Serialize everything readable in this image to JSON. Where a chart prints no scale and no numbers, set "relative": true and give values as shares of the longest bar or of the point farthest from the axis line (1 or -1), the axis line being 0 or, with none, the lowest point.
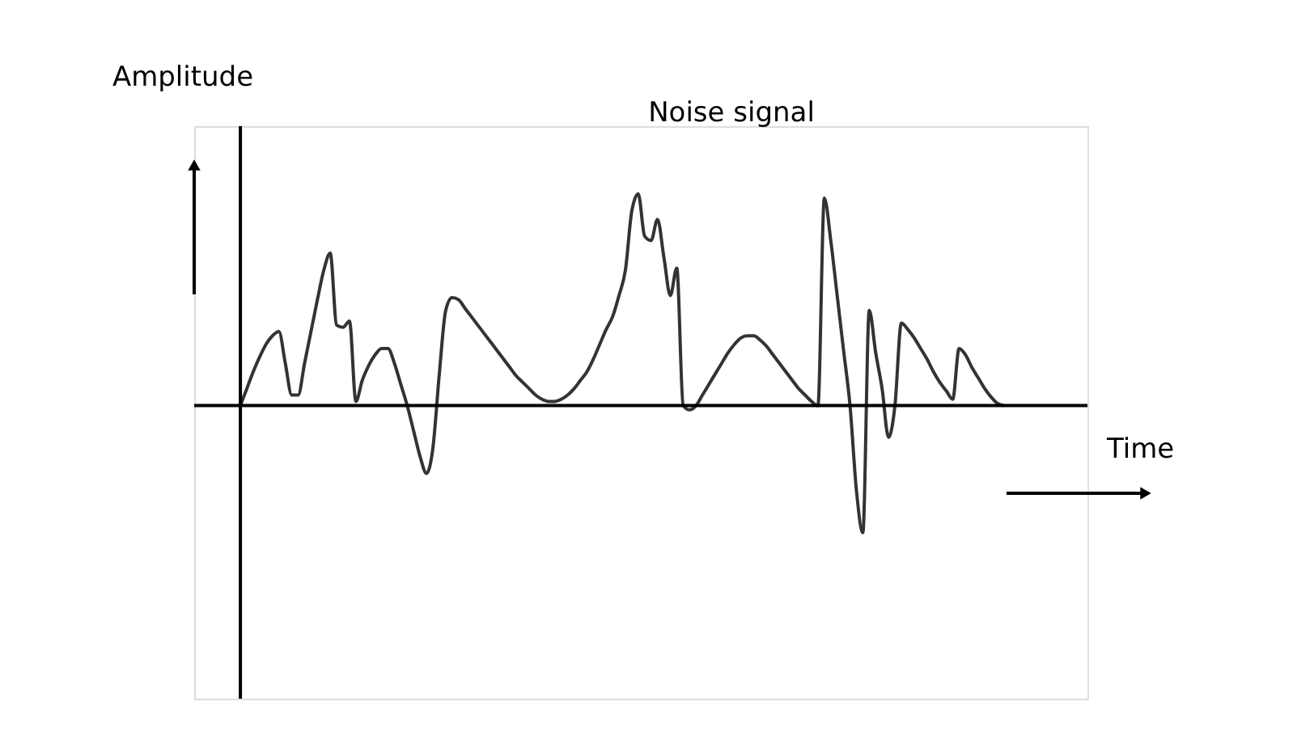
{
  "chart_data": {
    "type": "line",
    "relative": true,
    "title": "Noise signal",
    "xlabel": "Time",
    "ylabel": "Amplitude",
    "categories": [
      null,
      null,
      null,
      null,
      null,
      null,
      null,
      null,
      null,
      null,
      null,
      null,
      null,
      null,
      null,
      null,
      null,
      null,
      null,
      null,
      null,
      null,
      null,
      null,
      null,
      null,
      null,
      null,
      null,
      null,
      null,
      null,
      null,
      null,
      null,
      null,
      null,
      null,
      null,
      null,
      null,
      null,
      null,
      null,
      null,
      null,
      null,
      null,
      null,
      null,
      null,
      null,
      null,
      null,
      null,
      null,
      null,
      null,
      null,
      null,
      null,
      null,
      null,
      null,
      null,
      null,
      null,
      null,
      null,
      null,
      null,
      null,
      null,
      null,
      null,
      null,
      null,
      null,
      null,
      null,
      null,
      null,
      null,
      null,
      null,
      null,
      null,
      null,
      null,
      null,
      null,
      null,
      null,
      null,
      null,
      null,
      null,
      null,
      null,
      null,
      null,
      null,
      null,
      null,
      null,
      null,
      null,
      null,
      null,
      null,
      null,
      null,
      null,
      null,
      null,
      null,
      null,
      null,
      null,
      null
    ],
    "series": [
      {
        "color": "#333333",
        "values": [
          0,
          0.08,
          0.16,
          0.23,
          0.29,
          0.33,
          0.35,
          0.2,
          0.05,
          0.05,
          0.2,
          0.35,
          0.5,
          0.64,
          0.72,
          0.38,
          0.37,
          0.4,
          0.02,
          0.12,
          0.19,
          0.24,
          0.27,
          0.27,
          0.2,
          0.1,
          0,
          -0.12,
          -0.24,
          -0.32,
          -0.2,
          0.15,
          0.45,
          0.51,
          0.5,
          0.46,
          0.42,
          0.38,
          0.34,
          0.3,
          0.26,
          0.22,
          0.18,
          0.14,
          0.11,
          0.08,
          0.05,
          0.03,
          0.02,
          0.02,
          0.03,
          0.05,
          0.08,
          0.12,
          0.16,
          0.22,
          0.29,
          0.36,
          0.42,
          0.52,
          0.64,
          0.92,
          1.0,
          0.8,
          0.78,
          0.88,
          0.7,
          0.52,
          0.65,
          0,
          -0.02,
          0,
          0.05,
          0.1,
          0.15,
          0.2,
          0.25,
          0.29,
          0.32,
          0.33,
          0.33,
          0.31,
          0.28,
          0.24,
          0.2,
          0.16,
          0.12,
          0.08,
          0.05,
          0.02,
          0,
          0.98,
          0.78,
          0.52,
          0.26,
          0,
          -0.4,
          -0.6,
          0.45,
          0.25,
          0.08,
          -0.15,
          0,
          0.39,
          0.36,
          0.32,
          0.27,
          0.22,
          0.16,
          0.11,
          0.07,
          0.03,
          0.27,
          0.24,
          0.18,
          0.13,
          0.08,
          0.04,
          0.01,
          0
        ]
      }
    ]
  }
}
